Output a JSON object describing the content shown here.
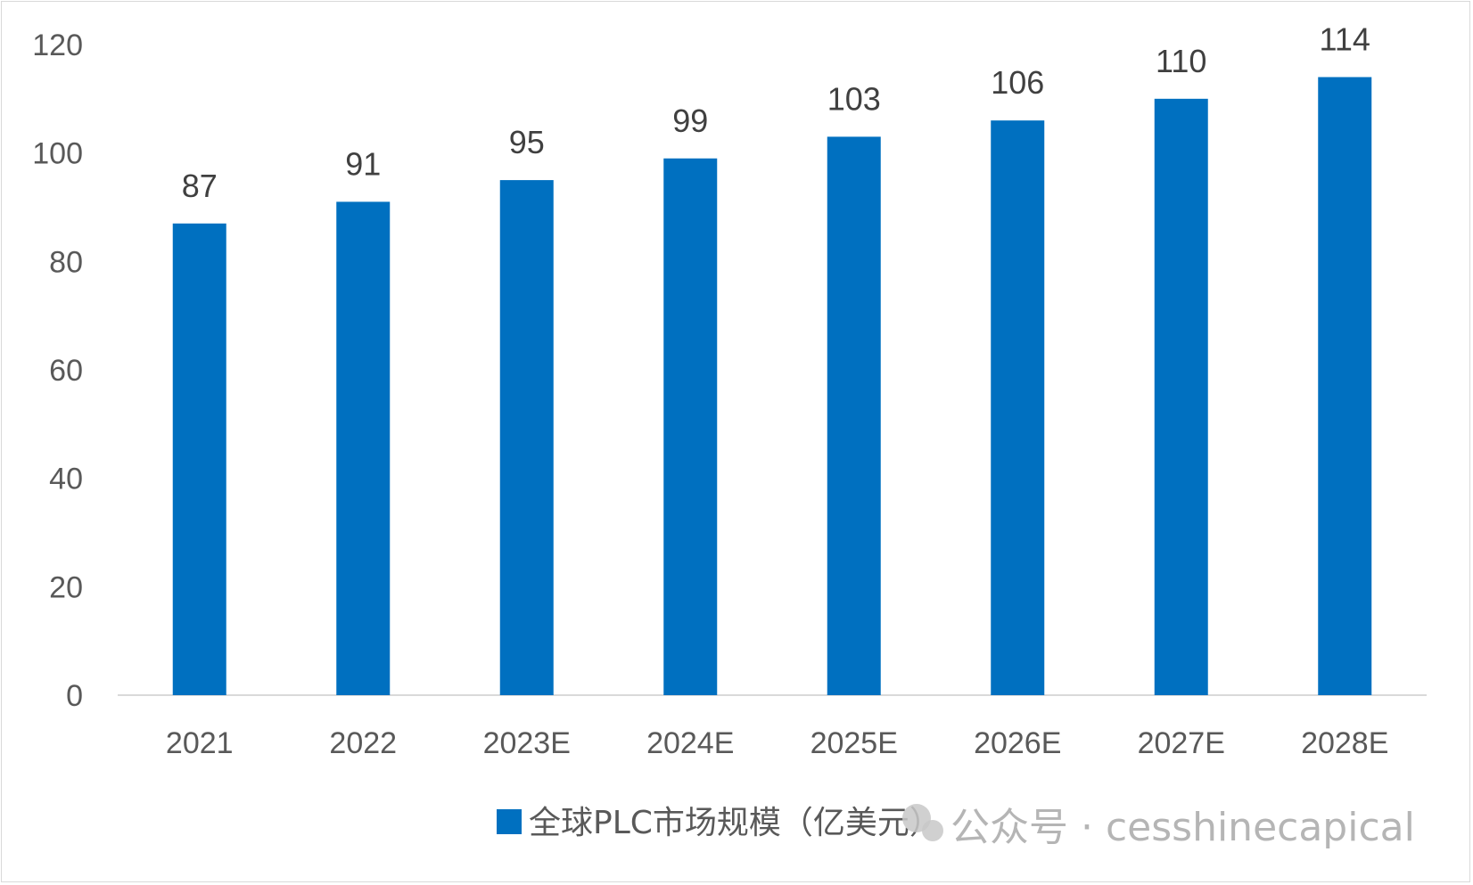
{
  "chart_data": {
    "type": "bar",
    "categories": [
      "2021",
      "2022",
      "2023E",
      "2024E",
      "2025E",
      "2026E",
      "2027E",
      "2028E"
    ],
    "series": [
      {
        "name": "全球PLC市场规模（亿美元）",
        "values": [
          87,
          91,
          95,
          99,
          103,
          106,
          110,
          114
        ]
      }
    ],
    "ylim": [
      0,
      120
    ],
    "yticks": [
      0,
      20,
      40,
      60,
      80,
      100,
      120
    ],
    "grid": false,
    "legend": "bottom",
    "data_labels": true,
    "bar_color": "#0070C0"
  },
  "watermark": {
    "text": "公众号 · cesshinecapical"
  }
}
